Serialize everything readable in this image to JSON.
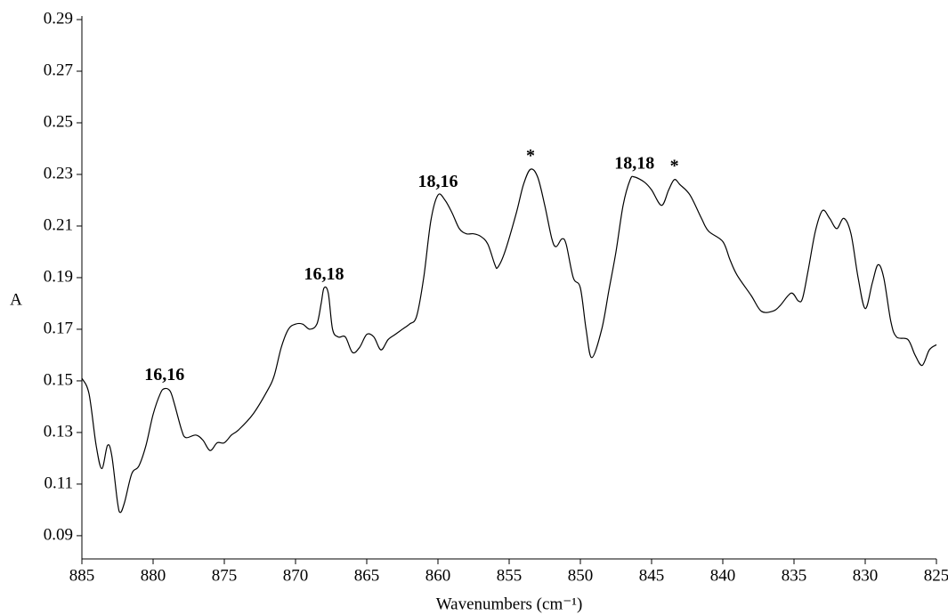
{
  "chart_data": {
    "type": "line",
    "x_label": "Wavenumbers (cm⁻¹)",
    "y_label": "A",
    "xlim": [
      885,
      825
    ],
    "ylim": [
      0.081,
      0.29
    ],
    "xticks": [
      885,
      880,
      875,
      870,
      865,
      860,
      855,
      850,
      845,
      840,
      835,
      830,
      825
    ],
    "yticks": [
      0.09,
      0.11,
      0.13,
      0.15,
      0.17,
      0.19,
      0.21,
      0.23,
      0.25,
      0.27,
      0.29
    ],
    "series": [
      {
        "color": "#000000",
        "x": [
          885,
          884.5,
          884,
          883.6,
          883.2,
          882.9,
          882.5,
          882.3,
          882,
          881.5,
          881,
          880.5,
          880,
          879.5,
          879.2,
          878.8,
          878.5,
          878,
          877.7,
          877,
          876.5,
          876,
          875.5,
          875,
          874.5,
          874,
          873,
          872,
          871.5,
          871,
          870.5,
          870,
          869.5,
          869,
          868.5,
          868.2,
          868,
          867.7,
          867.4,
          867,
          866.5,
          866,
          865.5,
          865,
          864.5,
          864,
          863.5,
          863,
          862.5,
          862,
          861.5,
          861,
          860.5,
          860,
          859.5,
          859,
          858.5,
          858,
          857.5,
          857,
          856.5,
          856,
          855.8,
          855.3,
          854.5,
          854,
          853.5,
          853,
          852.5,
          852,
          851.7,
          851.3,
          851,
          850.5,
          850,
          849.6,
          849.2,
          848.5,
          848,
          847.5,
          847,
          846.5,
          846.2,
          845.5,
          845,
          844.3,
          843.8,
          843.4,
          843,
          842.3,
          841.5,
          841,
          840,
          839.5,
          839,
          838,
          837.3,
          836.5,
          836,
          835.2,
          834.7,
          834.4,
          834,
          833.5,
          833,
          832.5,
          832,
          831.5,
          831,
          830.5,
          830,
          829.5,
          829.1,
          828.7,
          828.2,
          827.8,
          827,
          826.5,
          826,
          825.5,
          825
        ],
        "values": [
          0.151,
          0.145,
          0.125,
          0.116,
          0.125,
          0.121,
          0.103,
          0.099,
          0.103,
          0.114,
          0.117,
          0.125,
          0.137,
          0.145,
          0.147,
          0.146,
          0.141,
          0.131,
          0.128,
          0.129,
          0.127,
          0.123,
          0.126,
          0.126,
          0.129,
          0.131,
          0.137,
          0.146,
          0.152,
          0.163,
          0.17,
          0.172,
          0.172,
          0.17,
          0.172,
          0.18,
          0.186,
          0.184,
          0.17,
          0.167,
          0.167,
          0.161,
          0.163,
          0.168,
          0.167,
          0.162,
          0.166,
          0.168,
          0.17,
          0.172,
          0.175,
          0.19,
          0.212,
          0.222,
          0.22,
          0.215,
          0.209,
          0.207,
          0.207,
          0.206,
          0.203,
          0.195,
          0.194,
          0.2,
          0.215,
          0.226,
          0.232,
          0.229,
          0.218,
          0.205,
          0.202,
          0.205,
          0.203,
          0.19,
          0.186,
          0.17,
          0.159,
          0.17,
          0.185,
          0.2,
          0.218,
          0.228,
          0.229,
          0.227,
          0.224,
          0.218,
          0.224,
          0.228,
          0.226,
          0.222,
          0.213,
          0.208,
          0.204,
          0.197,
          0.191,
          0.183,
          0.177,
          0.177,
          0.179,
          0.184,
          0.181,
          0.182,
          0.193,
          0.208,
          0.216,
          0.213,
          0.209,
          0.213,
          0.207,
          0.19,
          0.178,
          0.188,
          0.195,
          0.19,
          0.173,
          0.167,
          0.166,
          0.16,
          0.156,
          0.162,
          0.164
        ]
      }
    ],
    "annotations": [
      {
        "text": "16,16",
        "x": 879.2
      },
      {
        "text": "16,18",
        "x": 868
      },
      {
        "text": "18,16",
        "x": 860
      },
      {
        "text": "*",
        "x": 853.5
      },
      {
        "text": "18,18",
        "x": 846.2
      },
      {
        "text": "*",
        "x": 843.4
      }
    ]
  }
}
